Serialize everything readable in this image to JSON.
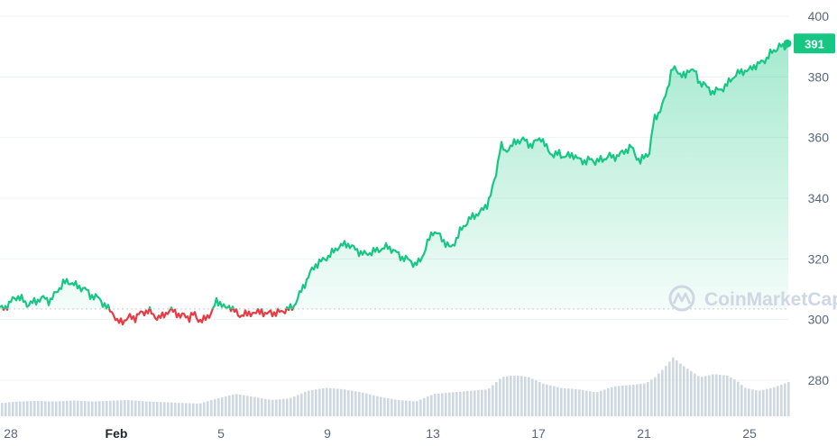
{
  "chart_data": {
    "type": "area",
    "y_ticks": [
      "400",
      "380",
      "360",
      "340",
      "320",
      "300",
      "280"
    ],
    "x_ticks": [
      "28",
      "Feb",
      "5",
      "9",
      "13",
      "17",
      "21",
      "25"
    ],
    "ylim": [
      266,
      405
    ],
    "reference_price": 303.5,
    "current_price": 391,
    "current_price_label": "391",
    "colors": {
      "up": "#16c784",
      "down": "#ea3943",
      "volume": "#cfd6e4",
      "grid": "#eff2f5"
    },
    "watermark": "CoinMarketCap",
    "series_price": [
      [
        0,
        303.5
      ],
      [
        5,
        304
      ],
      [
        10,
        305
      ],
      [
        15,
        307
      ],
      [
        20,
        307.5
      ],
      [
        25,
        306.5
      ],
      [
        30,
        305
      ],
      [
        35,
        305.5
      ],
      [
        40,
        306
      ],
      [
        45,
        307
      ],
      [
        50,
        307
      ],
      [
        55,
        306
      ],
      [
        60,
        308
      ],
      [
        65,
        310
      ],
      [
        70,
        312
      ],
      [
        75,
        312.5
      ],
      [
        80,
        312
      ],
      [
        85,
        311
      ],
      [
        90,
        310.5
      ],
      [
        95,
        310
      ],
      [
        100,
        308
      ],
      [
        105,
        307.5
      ],
      [
        110,
        307
      ],
      [
        115,
        305
      ],
      [
        120,
        303.5
      ],
      [
        125,
        302.5
      ],
      [
        130,
        299
      ],
      [
        135,
        299.5
      ],
      [
        140,
        300
      ],
      [
        145,
        301
      ],
      [
        150,
        300.5
      ],
      [
        155,
        302
      ],
      [
        160,
        302.5
      ],
      [
        165,
        303
      ],
      [
        170,
        301.5
      ],
      [
        175,
        300.5
      ],
      [
        180,
        301
      ],
      [
        185,
        302.5
      ],
      [
        190,
        303
      ],
      [
        195,
        302.5
      ],
      [
        200,
        301
      ],
      [
        205,
        301.5
      ],
      [
        210,
        300.5
      ],
      [
        215,
        302
      ],
      [
        220,
        300
      ],
      [
        225,
        299.5
      ],
      [
        230,
        301
      ],
      [
        235,
        302.5
      ],
      [
        240,
        306
      ],
      [
        245,
        305.5
      ],
      [
        250,
        303.5
      ],
      [
        255,
        304.5
      ],
      [
        260,
        303
      ],
      [
        265,
        301
      ],
      [
        270,
        302
      ],
      [
        275,
        301.5
      ],
      [
        280,
        302.5
      ],
      [
        285,
        302
      ],
      [
        290,
        303
      ],
      [
        295,
        301.5
      ],
      [
        300,
        302.5
      ],
      [
        305,
        302
      ],
      [
        310,
        302.5
      ],
      [
        315,
        303
      ],
      [
        320,
        303.5
      ],
      [
        325,
        304
      ],
      [
        330,
        307
      ],
      [
        335,
        310
      ],
      [
        340,
        313
      ],
      [
        345,
        316
      ],
      [
        350,
        318
      ],
      [
        355,
        319
      ],
      [
        360,
        320
      ],
      [
        365,
        321
      ],
      [
        370,
        322.5
      ],
      [
        375,
        324
      ],
      [
        380,
        324.5
      ],
      [
        385,
        325
      ],
      [
        390,
        324
      ],
      [
        395,
        323
      ],
      [
        400,
        322
      ],
      [
        405,
        321.5
      ],
      [
        410,
        322
      ],
      [
        415,
        322.5
      ],
      [
        420,
        323
      ],
      [
        425,
        323.5
      ],
      [
        430,
        324
      ],
      [
        435,
        323
      ],
      [
        440,
        322
      ],
      [
        445,
        320.5
      ],
      [
        450,
        320
      ],
      [
        455,
        319.5
      ],
      [
        460,
        318
      ],
      [
        465,
        319
      ],
      [
        470,
        322
      ],
      [
        475,
        326
      ],
      [
        480,
        329
      ],
      [
        485,
        328.5
      ],
      [
        490,
        326.5
      ],
      [
        495,
        325
      ],
      [
        500,
        323.5
      ],
      [
        505,
        326
      ],
      [
        510,
        329
      ],
      [
        515,
        331
      ],
      [
        520,
        333
      ],
      [
        525,
        334
      ],
      [
        530,
        335
      ],
      [
        535,
        336
      ],
      [
        540,
        338
      ],
      [
        545,
        342
      ],
      [
        550,
        348
      ],
      [
        555,
        358
      ],
      [
        560,
        355
      ],
      [
        565,
        357
      ],
      [
        570,
        358
      ],
      [
        575,
        359
      ],
      [
        580,
        359.5
      ],
      [
        585,
        358
      ],
      [
        590,
        357.5
      ],
      [
        595,
        359
      ],
      [
        600,
        360
      ],
      [
        605,
        357
      ],
      [
        610,
        355
      ],
      [
        615,
        354
      ],
      [
        620,
        355
      ],
      [
        625,
        353.5
      ],
      [
        630,
        354
      ],
      [
        635,
        354.5
      ],
      [
        640,
        353
      ],
      [
        645,
        352.5
      ],
      [
        650,
        352
      ],
      [
        655,
        353
      ],
      [
        660,
        352
      ],
      [
        665,
        352.5
      ],
      [
        670,
        353
      ],
      [
        675,
        354
      ],
      [
        680,
        353.5
      ],
      [
        685,
        354
      ],
      [
        690,
        355
      ],
      [
        695,
        356
      ],
      [
        700,
        357
      ],
      [
        705,
        354
      ],
      [
        710,
        352
      ],
      [
        715,
        354
      ],
      [
        720,
        355
      ],
      [
        725,
        366
      ],
      [
        730,
        368
      ],
      [
        735,
        371
      ],
      [
        740,
        376
      ],
      [
        745,
        383
      ],
      [
        750,
        382
      ],
      [
        755,
        381
      ],
      [
        760,
        380
      ],
      [
        765,
        383
      ],
      [
        770,
        382
      ],
      [
        775,
        378
      ],
      [
        780,
        378
      ],
      [
        785,
        376
      ],
      [
        790,
        375
      ],
      [
        795,
        375.5
      ],
      [
        800,
        376
      ],
      [
        805,
        377
      ],
      [
        810,
        379
      ],
      [
        815,
        380.5
      ],
      [
        820,
        381.5
      ],
      [
        825,
        382
      ],
      [
        830,
        382
      ],
      [
        835,
        383.5
      ],
      [
        840,
        384
      ],
      [
        845,
        385
      ],
      [
        850,
        386
      ],
      [
        855,
        388
      ],
      [
        860,
        389
      ],
      [
        865,
        390.5
      ],
      [
        870,
        389
      ],
      [
        874,
        391
      ]
    ],
    "series_volume": [
      [
        0,
        272.5
      ],
      [
        20,
        273
      ],
      [
        40,
        273.2
      ],
      [
        60,
        273
      ],
      [
        80,
        273.3
      ],
      [
        100,
        273
      ],
      [
        120,
        273.2
      ],
      [
        140,
        273.5
      ],
      [
        160,
        273
      ],
      [
        180,
        272.8
      ],
      [
        200,
        272.5
      ],
      [
        220,
        272.3
      ],
      [
        240,
        274
      ],
      [
        260,
        275.5
      ],
      [
        280,
        274.5
      ],
      [
        300,
        273.5
      ],
      [
        320,
        274
      ],
      [
        340,
        276.5
      ],
      [
        360,
        277.5
      ],
      [
        380,
        277
      ],
      [
        400,
        276
      ],
      [
        420,
        274.5
      ],
      [
        440,
        273.5
      ],
      [
        460,
        273
      ],
      [
        480,
        275.5
      ],
      [
        500,
        276
      ],
      [
        520,
        276.5
      ],
      [
        540,
        277
      ],
      [
        555,
        281
      ],
      [
        565,
        281.5
      ],
      [
        575,
        281.5
      ],
      [
        585,
        281
      ],
      [
        600,
        279
      ],
      [
        620,
        277.5
      ],
      [
        640,
        277
      ],
      [
        660,
        276
      ],
      [
        680,
        278
      ],
      [
        700,
        278.5
      ],
      [
        715,
        279
      ],
      [
        725,
        281
      ],
      [
        735,
        284
      ],
      [
        745,
        287.5
      ],
      [
        755,
        285
      ],
      [
        765,
        283
      ],
      [
        775,
        281
      ],
      [
        790,
        282
      ],
      [
        805,
        281.5
      ],
      [
        815,
        280
      ],
      [
        825,
        277.5
      ],
      [
        840,
        276.5
      ],
      [
        855,
        277.5
      ],
      [
        865,
        278.5
      ],
      [
        874,
        279.5
      ]
    ]
  }
}
